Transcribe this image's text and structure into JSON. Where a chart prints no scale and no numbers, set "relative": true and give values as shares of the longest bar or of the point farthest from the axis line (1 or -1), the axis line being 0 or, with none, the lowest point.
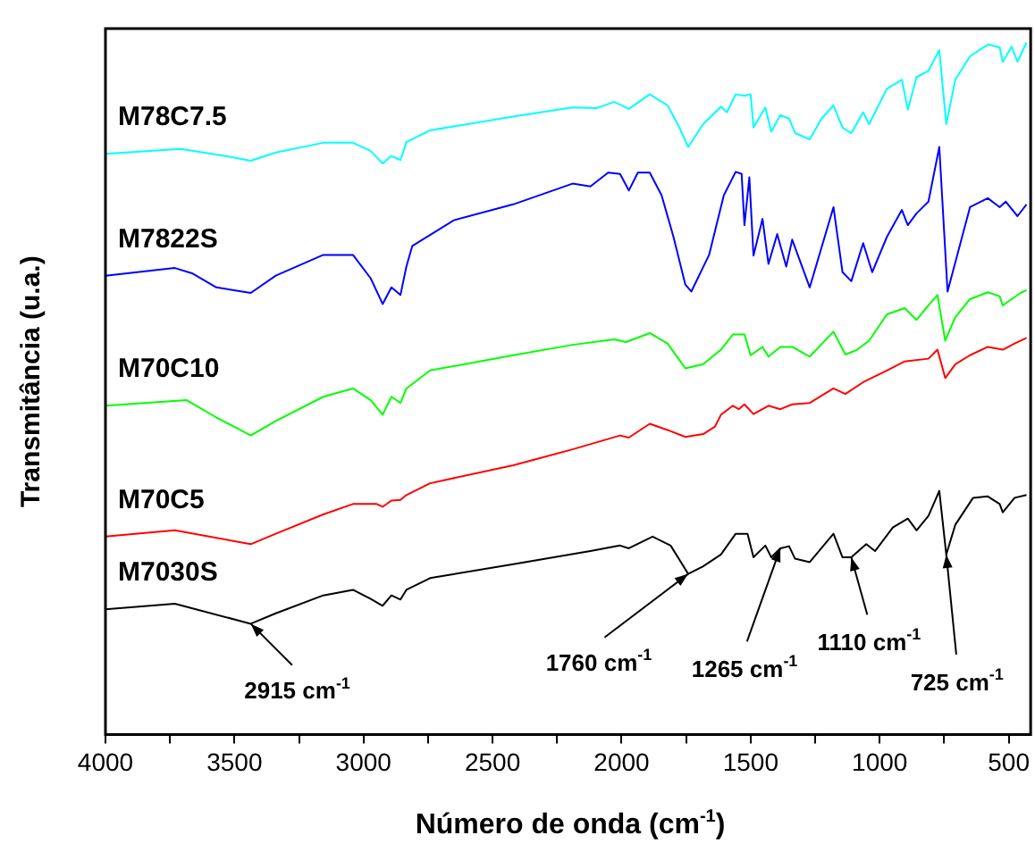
{
  "chart_data": {
    "type": "line",
    "xlabel": "Número de onda (cm$^{-1}$)",
    "ylabel": "Transmitância (u.a.)",
    "relative": true,
    "legend": false,
    "grid": false,
    "tick_labels": "x",
    "marker": "none",
    "line_style": "solid",
    "xlim": [
      4000,
      415
    ],
    "xticks": [
      4000,
      {
        "value": 3750,
        "label": null
      },
      3500,
      {
        "value": 3250,
        "label": null
      },
      3000,
      {
        "value": 2750,
        "label": null
      },
      2500,
      {
        "value": 2250,
        "label": null
      },
      2000,
      {
        "value": 1750,
        "label": null
      },
      1500,
      {
        "value": 1250,
        "label": null
      },
      1000,
      {
        "value": 750,
        "label": null
      },
      500
    ],
    "series": [
      {
        "name": "M78C7.5",
        "color": "#00ffff",
        "x": [
          4000,
          3708,
          3524,
          3437,
          3340,
          3156,
          3041,
          2972,
          2926,
          2892,
          2857,
          2834,
          2742,
          2420,
          2190,
          2098,
          2029,
          1972,
          1891,
          1822,
          1776,
          1742,
          1684,
          1615,
          1592,
          1558,
          1524,
          1500,
          1489,
          1443,
          1420,
          1385,
          1351,
          1328,
          1271,
          1225,
          1179,
          1144,
          1110,
          1064,
          1041,
          972,
          914,
          891,
          857,
          811,
          769,
          742,
          707,
          650,
          581,
          535,
          523,
          489,
          466,
          431
        ],
        "values": [
          0.839,
          0.846,
          0.835,
          0.829,
          0.841,
          0.855,
          0.855,
          0.843,
          0.825,
          0.836,
          0.83,
          0.856,
          0.873,
          0.893,
          0.906,
          0.905,
          0.914,
          0.904,
          0.925,
          0.909,
          0.877,
          0.849,
          0.882,
          0.907,
          0.899,
          0.925,
          0.923,
          0.925,
          0.877,
          0.906,
          0.871,
          0.895,
          0.89,
          0.869,
          0.86,
          0.89,
          0.909,
          0.877,
          0.869,
          0.899,
          0.882,
          0.933,
          0.946,
          0.903,
          0.95,
          0.959,
          0.989,
          0.882,
          0.946,
          0.98,
          0.997,
          0.993,
          0.972,
          0.994,
          0.972,
          1
        ]
      },
      {
        "name": "M7822S",
        "color": "#0000ff",
        "x": [
          4000,
          3731,
          3662,
          3570,
          3437,
          3340,
          3156,
          3041,
          2972,
          2926,
          2892,
          2857,
          2834,
          2811,
          2650,
          2420,
          2190,
          2121,
          2052,
          2006,
          1972,
          1937,
          1891,
          1845,
          1799,
          1753,
          1730,
          1661,
          1604,
          1558,
          1535,
          1524,
          1505,
          1489,
          1454,
          1431,
          1397,
          1362,
          1339,
          1271,
          1179,
          1144,
          1110,
          1064,
          1029,
          972,
          914,
          891,
          857,
          811,
          769,
          737,
          650,
          581,
          535,
          512,
          466,
          431
        ],
        "values": [
          0.663,
          0.674,
          0.666,
          0.646,
          0.638,
          0.663,
          0.693,
          0.693,
          0.659,
          0.622,
          0.646,
          0.635,
          0.676,
          0.706,
          0.743,
          0.766,
          0.796,
          0.792,
          0.812,
          0.81,
          0.786,
          0.812,
          0.812,
          0.779,
          0.719,
          0.65,
          0.64,
          0.693,
          0.779,
          0.813,
          0.81,
          0.736,
          0.805,
          0.692,
          0.745,
          0.68,
          0.723,
          0.676,
          0.715,
          0.646,
          0.762,
          0.668,
          0.655,
          0.71,
          0.668,
          0.719,
          0.758,
          0.736,
          0.753,
          0.77,
          0.849,
          0.64,
          0.762,
          0.775,
          0.762,
          0.77,
          0.749,
          0.766
        ]
      },
      {
        "name": "M70C10",
        "color": "#00ff00",
        "x": [
          4000,
          3685,
          3570,
          3437,
          3340,
          3156,
          3041,
          2972,
          2926,
          2892,
          2857,
          2834,
          2742,
          2420,
          2190,
          2029,
          1983,
          1891,
          1822,
          1753,
          1684,
          1615,
          1569,
          1524,
          1500,
          1454,
          1431,
          1385,
          1339,
          1271,
          1179,
          1133,
          1087,
          1041,
          972,
          903,
          857,
          811,
          776,
          746,
          707,
          650,
          581,
          535,
          523,
          489,
          454,
          431
        ],
        "values": [
          0.475,
          0.483,
          0.458,
          0.432,
          0.453,
          0.488,
          0.5,
          0.483,
          0.462,
          0.488,
          0.479,
          0.5,
          0.526,
          0.548,
          0.563,
          0.571,
          0.567,
          0.58,
          0.565,
          0.529,
          0.535,
          0.556,
          0.578,
          0.578,
          0.548,
          0.56,
          0.546,
          0.56,
          0.56,
          0.546,
          0.582,
          0.549,
          0.556,
          0.569,
          0.607,
          0.616,
          0.599,
          0.62,
          0.635,
          0.569,
          0.603,
          0.629,
          0.639,
          0.633,
          0.62,
          0.629,
          0.638,
          0.642
        ]
      },
      {
        "name": "M70C5",
        "color": "#ff0000",
        "x": [
          4000,
          3731,
          3437,
          3340,
          3156,
          3041,
          2949,
          2926,
          2892,
          2857,
          2834,
          2742,
          2420,
          2190,
          2006,
          1972,
          1891,
          1822,
          1753,
          1684,
          1638,
          1615,
          1569,
          1546,
          1524,
          1489,
          1431,
          1385,
          1339,
          1271,
          1179,
          1133,
          1064,
          972,
          903,
          811,
          776,
          746,
          707,
          650,
          581,
          523,
          477,
          431
        ],
        "values": [
          0.286,
          0.295,
          0.275,
          0.29,
          0.318,
          0.333,
          0.333,
          0.329,
          0.338,
          0.339,
          0.346,
          0.363,
          0.389,
          0.412,
          0.432,
          0.429,
          0.449,
          0.44,
          0.43,
          0.434,
          0.445,
          0.462,
          0.475,
          0.47,
          0.477,
          0.463,
          0.475,
          0.47,
          0.477,
          0.479,
          0.5,
          0.492,
          0.509,
          0.526,
          0.539,
          0.543,
          0.556,
          0.515,
          0.535,
          0.548,
          0.56,
          0.556,
          0.565,
          0.573
        ]
      },
      {
        "name": "M7030S",
        "color": "#000000",
        "x": [
          4000,
          3731,
          3437,
          3340,
          3156,
          3041,
          2972,
          2926,
          2892,
          2857,
          2834,
          2742,
          2420,
          2121,
          2006,
          1972,
          1880,
          1810,
          1742,
          1684,
          1615,
          1558,
          1512,
          1489,
          1443,
          1420,
          1385,
          1351,
          1328,
          1271,
          1179,
          1144,
          1110,
          1052,
          1018,
          949,
          891,
          857,
          811,
          769,
          742,
          707,
          638,
          581,
          535,
          523,
          477,
          431
        ],
        "values": [
          0.181,
          0.189,
          0.16,
          0.175,
          0.201,
          0.209,
          0.196,
          0.186,
          0.201,
          0.195,
          0.209,
          0.226,
          0.246,
          0.265,
          0.273,
          0.269,
          0.286,
          0.273,
          0.232,
          0.243,
          0.26,
          0.29,
          0.29,
          0.256,
          0.273,
          0.256,
          0.269,
          0.272,
          0.254,
          0.249,
          0.29,
          0.256,
          0.256,
          0.275,
          0.265,
          0.299,
          0.312,
          0.295,
          0.316,
          0.352,
          0.26,
          0.303,
          0.342,
          0.344,
          0.333,
          0.321,
          0.342,
          0.346
        ]
      }
    ],
    "annotations": [
      {
        "text": "2915 cm$^{-1}$",
        "x": 3437,
        "y": 0.16
      },
      {
        "text": "1760 cm$^{-1}$",
        "x": 1742,
        "y": 0.232
      },
      {
        "text": "1265 cm$^{-1}$",
        "x": 1385,
        "y": 0.269
      },
      {
        "text": "1110 cm$^{-1}$",
        "x": 1110,
        "y": 0.256
      },
      {
        "text": "725 cm$^{-1}$",
        "x": 742,
        "y": 0.26
      }
    ]
  }
}
